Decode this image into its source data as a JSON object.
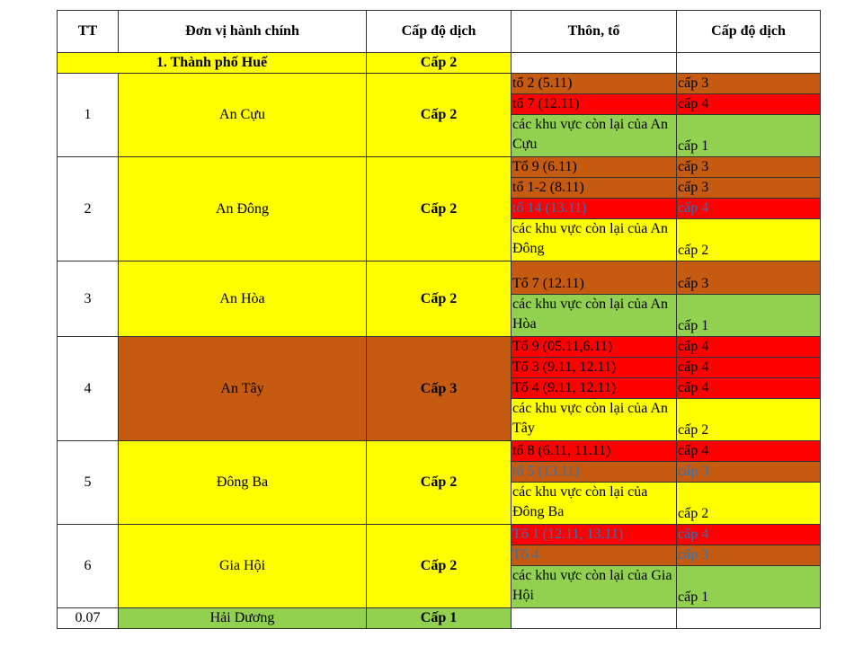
{
  "header": {
    "tt": "TT",
    "unit": "Đơn vị hành chính",
    "level": "Cấp độ dịch",
    "village": "Thôn, tổ",
    "village_level": "Cấp độ dịch"
  },
  "section": {
    "title": "1. Thành phố Huế",
    "level": "Cấp 2"
  },
  "units": [
    {
      "no": "1",
      "name": "An Cựu",
      "level": "Cấp 2",
      "subs": [
        {
          "name": "tổ 2 (5.11)",
          "level": "cấp 3"
        },
        {
          "name": "tổ 7 (12.11)",
          "level": "cấp 4"
        },
        {
          "name": "các khu vực còn lại của An Cựu",
          "level": "cấp 1"
        }
      ]
    },
    {
      "no": "2",
      "name": "An Đông",
      "level": "Cấp 2",
      "subs": [
        {
          "name": "Tổ 9 (6.11)",
          "level": "cấp 3"
        },
        {
          "name": "tổ 1-2 (8.11)",
          "level": "cấp 3"
        },
        {
          "name": "tổ 14 (13.11)",
          "level": "cấp 4"
        },
        {
          "name": "các khu vực còn lại của An Đông",
          "level": "cấp 2"
        }
      ]
    },
    {
      "no": "3",
      "name": "An Hòa",
      "level": "Cấp 2",
      "subs": [
        {
          "name": "Tổ 7 (12.11)",
          "level": "cấp 3"
        },
        {
          "name": "các khu vực còn lại của An Hòa",
          "level": "cấp 1"
        }
      ]
    },
    {
      "no": "4",
      "name": "An Tây",
      "level": "Cấp 3",
      "subs": [
        {
          "name": "Tổ 9 (05.11,6.11)",
          "level": "cấp 4"
        },
        {
          "name": "Tổ 3 (9.11, 12.11)",
          "level": "cấp 4"
        },
        {
          "name": "Tổ 4 (9.11, 12.11)",
          "level": "cấp 4"
        },
        {
          "name": "các khu vực còn lại của An Tây",
          "level": "cấp 2"
        }
      ]
    },
    {
      "no": "5",
      "name": "Đông Ba",
      "level": "Cấp 2",
      "subs": [
        {
          "name": "tổ 8 (6.11, 11.11)",
          "level": "cấp 4"
        },
        {
          "name": "tổ 5 (13.11)",
          "level": "cấp 3"
        },
        {
          "name": "các khu vực còn lại của Đông Ba",
          "level": "cấp 2"
        }
      ]
    },
    {
      "no": "6",
      "name": "Gia Hội",
      "level": "Cấp 2",
      "subs": [
        {
          "name": "Tổ 1 (12.11, 13.11)",
          "level": "cấp 4"
        },
        {
          "name": "Tổ 4",
          "level": "cấp 3"
        },
        {
          "name": "các khu vực còn lại của Gia Hội",
          "level": "cấp 1"
        }
      ]
    },
    {
      "no": "0.07",
      "name": "Hải Dương",
      "level": "Cấp 1",
      "subs": []
    }
  ],
  "colors": {
    "yellow": "#ffff00",
    "green": "#92d050",
    "orange": "#c55a11",
    "red": "#ff0000",
    "blue_text": "#2e75b6"
  }
}
